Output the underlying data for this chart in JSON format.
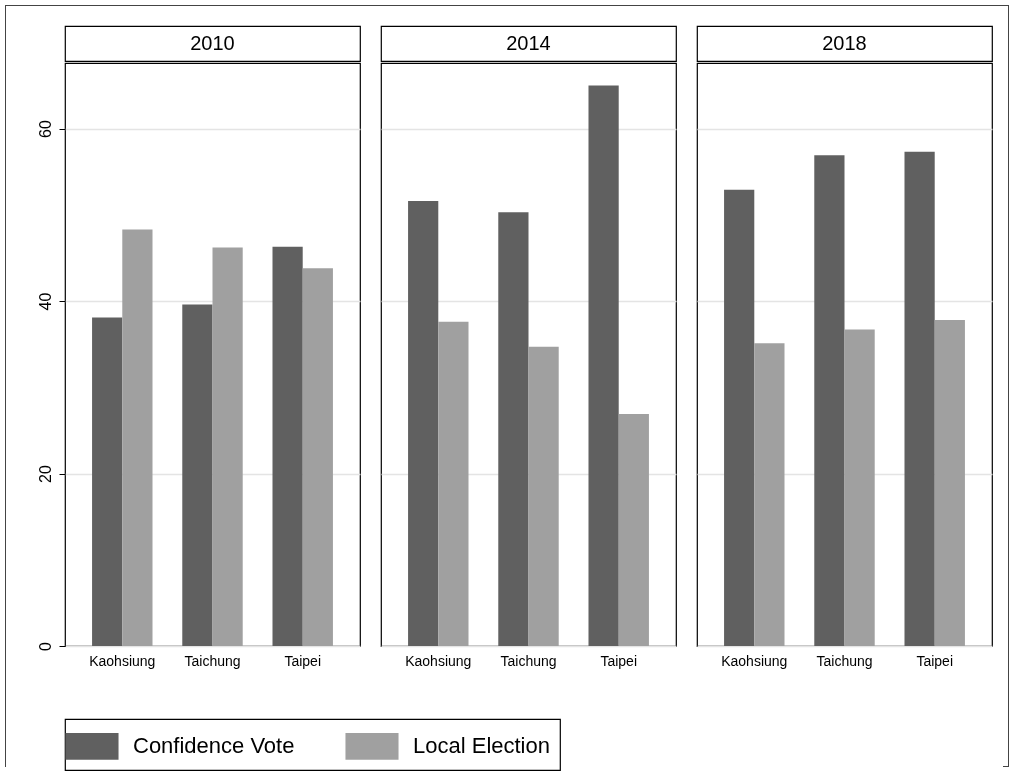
{
  "chart_data": [
    {
      "type": "bar",
      "title": "2010",
      "categories": [
        "Kaohsiung",
        "Taichung",
        "Taipei"
      ],
      "series": [
        {
          "name": "Confidence Vote",
          "color": "#606060",
          "values": [
            38.1,
            39.6,
            46.3
          ]
        },
        {
          "name": "Local Election",
          "color": "#a0a0a0",
          "values": [
            48.3,
            46.2,
            43.8
          ]
        }
      ],
      "ylim": [
        0,
        67.6
      ],
      "yticks": [
        0,
        20,
        40,
        60
      ],
      "grid": "y",
      "legend": "bottom"
    },
    {
      "type": "bar",
      "title": "2014",
      "categories": [
        "Kaohsiung",
        "Taichung",
        "Taipei"
      ],
      "series": [
        {
          "name": "Confidence Vote",
          "color": "#606060",
          "values": [
            51.6,
            50.3,
            65.0
          ]
        },
        {
          "name": "Local Election",
          "color": "#a0a0a0",
          "values": [
            37.6,
            34.7,
            26.9
          ]
        }
      ],
      "ylim": [
        0,
        67.6
      ],
      "yticks": [
        0,
        20,
        40,
        60
      ],
      "grid": "y",
      "legend": "bottom",
      "tick_labels": "x"
    },
    {
      "type": "bar",
      "title": "2018",
      "categories": [
        "Kaohsiung",
        "Taichung",
        "Taipei"
      ],
      "series": [
        {
          "name": "Confidence Vote",
          "color": "#606060",
          "values": [
            52.9,
            56.9,
            57.3
          ]
        },
        {
          "name": "Local Election",
          "color": "#a0a0a0",
          "values": [
            35.1,
            36.7,
            37.8
          ]
        }
      ],
      "ylim": [
        0,
        67.6
      ],
      "yticks": [
        0,
        20,
        40,
        60
      ],
      "grid": "y",
      "legend": "bottom",
      "tick_labels": "x"
    }
  ]
}
